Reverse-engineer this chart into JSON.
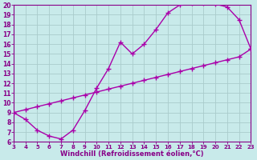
{
  "x_curve": [
    3,
    4,
    5,
    6,
    7,
    8,
    9,
    10,
    11,
    12,
    13,
    14,
    15,
    16,
    17,
    18,
    19,
    20,
    21,
    22,
    23
  ],
  "y_curve": [
    9.0,
    8.3,
    7.2,
    6.6,
    6.3,
    7.2,
    9.2,
    11.5,
    13.5,
    16.2,
    15.0,
    16.0,
    17.5,
    19.2,
    20.0,
    20.2,
    20.2,
    20.1,
    19.8,
    18.5,
    15.5
  ],
  "x_line": [
    3,
    4,
    5,
    6,
    7,
    8,
    9,
    10,
    11,
    12,
    13,
    14,
    15,
    16,
    17,
    18,
    19,
    20,
    21,
    22,
    23
  ],
  "y_line": [
    9.0,
    9.3,
    9.6,
    9.9,
    10.2,
    10.5,
    10.8,
    11.1,
    11.4,
    11.7,
    12.0,
    12.3,
    12.6,
    12.9,
    13.2,
    13.5,
    13.8,
    14.1,
    14.4,
    14.7,
    15.5
  ],
  "color": "#aa00aa",
  "bg_color": "#c8eaea",
  "grid_color": "#aacccc",
  "axis_color": "#880088",
  "xlabel": "Windchill (Refroidissement éolien,°C)",
  "xlim": [
    3,
    23
  ],
  "ylim": [
    6,
    20
  ],
  "xticks": [
    3,
    4,
    5,
    6,
    7,
    8,
    9,
    10,
    11,
    12,
    13,
    14,
    15,
    16,
    17,
    18,
    19,
    20,
    21,
    22,
    23
  ],
  "yticks": [
    6,
    7,
    8,
    9,
    10,
    11,
    12,
    13,
    14,
    15,
    16,
    17,
    18,
    19,
    20
  ],
  "marker": "+",
  "markersize": 5,
  "linewidth": 1.0,
  "tick_fontsize": 5.5,
  "xlabel_fontsize": 6.0
}
